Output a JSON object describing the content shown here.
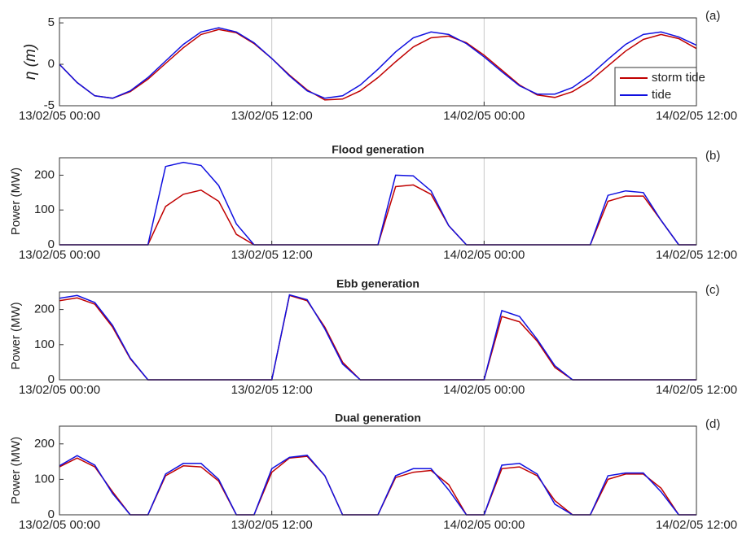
{
  "chart_data": [
    {
      "type": "line",
      "annotation": "(a)",
      "ylabel": "η (m)",
      "legend": "lower right",
      "xgrid": true,
      "x": [
        "13/02/05 00:00",
        "13/02/05 01:00",
        "13/02/05 02:00",
        "13/02/05 03:00",
        "13/02/05 04:00",
        "13/02/05 05:00",
        "13/02/05 06:00",
        "13/02/05 07:00",
        "13/02/05 08:00",
        "13/02/05 09:00",
        "13/02/05 10:00",
        "13/02/05 11:00",
        "13/02/05 12:00",
        "13/02/05 13:00",
        "13/02/05 14:00",
        "13/02/05 15:00",
        "13/02/05 16:00",
        "13/02/05 17:00",
        "13/02/05 18:00",
        "13/02/05 19:00",
        "13/02/05 20:00",
        "13/02/05 21:00",
        "13/02/05 22:00",
        "13/02/05 23:00",
        "14/02/05 00:00",
        "14/02/05 01:00",
        "14/02/05 02:00",
        "14/02/05 03:00",
        "14/02/05 04:00",
        "14/02/05 05:00",
        "14/02/05 06:00",
        "14/02/05 07:00",
        "14/02/05 08:00",
        "14/02/05 09:00",
        "14/02/05 10:00",
        "14/02/05 11:00",
        "14/02/05 12:00"
      ],
      "xlim": [
        "13/02/05 00:00",
        "14/02/05 12:00"
      ],
      "xticks": [
        "13/02/05 00:00",
        "13/02/05 12:00",
        "14/02/05 00:00",
        "14/02/05 12:00"
      ],
      "ylim": [
        -5,
        5.6
      ],
      "yticks": [
        -5,
        0,
        5
      ],
      "series": [
        {
          "name": "storm tide",
          "color": "#c00000",
          "values": [
            0,
            -2.2,
            -3.8,
            -4.1,
            -3.3,
            -1.8,
            0.1,
            2.0,
            3.6,
            4.2,
            3.8,
            2.5,
            0.7,
            -1.3,
            -3.1,
            -4.3,
            -4.2,
            -3.2,
            -1.6,
            0.3,
            2.1,
            3.2,
            3.4,
            2.6,
            1.1,
            -0.7,
            -2.5,
            -3.7,
            -4.0,
            -3.3,
            -2.0,
            -0.2,
            1.6,
            3.0,
            3.6,
            3.1,
            1.9
          ]
        },
        {
          "name": "tide",
          "color": "#1010e0",
          "values": [
            0,
            -2.2,
            -3.8,
            -4.1,
            -3.2,
            -1.6,
            0.4,
            2.4,
            3.9,
            4.4,
            3.9,
            2.6,
            0.7,
            -1.4,
            -3.2,
            -4.1,
            -3.8,
            -2.5,
            -0.6,
            1.5,
            3.2,
            3.9,
            3.6,
            2.5,
            0.9,
            -0.9,
            -2.6,
            -3.6,
            -3.6,
            -2.8,
            -1.3,
            0.6,
            2.4,
            3.6,
            3.9,
            3.3,
            2.3
          ]
        }
      ]
    },
    {
      "type": "line",
      "title": "Flood generation",
      "annotation": "(b)",
      "ylabel": "Power (MW)",
      "xgrid": true,
      "x": [
        "13/02/05 00:00",
        "13/02/05 01:00",
        "13/02/05 02:00",
        "13/02/05 03:00",
        "13/02/05 04:00",
        "13/02/05 05:00",
        "13/02/05 06:00",
        "13/02/05 07:00",
        "13/02/05 08:00",
        "13/02/05 09:00",
        "13/02/05 10:00",
        "13/02/05 11:00",
        "13/02/05 12:00",
        "13/02/05 13:00",
        "13/02/05 14:00",
        "13/02/05 15:00",
        "13/02/05 16:00",
        "13/02/05 17:00",
        "13/02/05 18:00",
        "13/02/05 19:00",
        "13/02/05 20:00",
        "13/02/05 21:00",
        "13/02/05 22:00",
        "13/02/05 23:00",
        "14/02/05 00:00",
        "14/02/05 01:00",
        "14/02/05 02:00",
        "14/02/05 03:00",
        "14/02/05 04:00",
        "14/02/05 05:00",
        "14/02/05 06:00",
        "14/02/05 07:00",
        "14/02/05 08:00",
        "14/02/05 09:00",
        "14/02/05 10:00",
        "14/02/05 11:00",
        "14/02/05 12:00"
      ],
      "xlim": [
        "13/02/05 00:00",
        "14/02/05 12:00"
      ],
      "xticks": [
        "13/02/05 00:00",
        "13/02/05 12:00",
        "14/02/05 00:00",
        "14/02/05 12:00"
      ],
      "ylim": [
        0,
        250
      ],
      "yticks": [
        0,
        100,
        200
      ],
      "series": [
        {
          "color": "#c00000",
          "values": [
            0,
            0,
            0,
            0,
            0,
            0,
            110,
            145,
            157,
            125,
            30,
            0,
            0,
            0,
            0,
            0,
            0,
            0,
            0,
            167,
            172,
            145,
            55,
            0,
            0,
            0,
            0,
            0,
            0,
            0,
            0,
            125,
            140,
            140,
            70,
            0,
            0
          ]
        },
        {
          "color": "#1010e0",
          "values": [
            0,
            0,
            0,
            0,
            0,
            0,
            225,
            237,
            228,
            170,
            60,
            0,
            0,
            0,
            0,
            0,
            0,
            0,
            0,
            200,
            198,
            155,
            55,
            0,
            0,
            0,
            0,
            0,
            0,
            0,
            0,
            142,
            155,
            150,
            70,
            0,
            0
          ]
        }
      ]
    },
    {
      "type": "line",
      "title": "Ebb generation",
      "annotation": "(c)",
      "ylabel": "Power (MW)",
      "xgrid": true,
      "x": [
        "13/02/05 00:00",
        "13/02/05 01:00",
        "13/02/05 02:00",
        "13/02/05 03:00",
        "13/02/05 04:00",
        "13/02/05 05:00",
        "13/02/05 06:00",
        "13/02/05 07:00",
        "13/02/05 08:00",
        "13/02/05 09:00",
        "13/02/05 10:00",
        "13/02/05 11:00",
        "13/02/05 12:00",
        "13/02/05 13:00",
        "13/02/05 14:00",
        "13/02/05 15:00",
        "13/02/05 16:00",
        "13/02/05 17:00",
        "13/02/05 18:00",
        "13/02/05 19:00",
        "13/02/05 20:00",
        "13/02/05 21:00",
        "13/02/05 22:00",
        "13/02/05 23:00",
        "14/02/05 00:00",
        "14/02/05 01:00",
        "14/02/05 02:00",
        "14/02/05 03:00",
        "14/02/05 04:00",
        "14/02/05 05:00",
        "14/02/05 06:00",
        "14/02/05 07:00",
        "14/02/05 08:00",
        "14/02/05 09:00",
        "14/02/05 10:00",
        "14/02/05 11:00",
        "14/02/05 12:00"
      ],
      "xlim": [
        "13/02/05 00:00",
        "14/02/05 12:00"
      ],
      "xticks": [
        "13/02/05 00:00",
        "13/02/05 12:00",
        "14/02/05 00:00",
        "14/02/05 12:00"
      ],
      "ylim": [
        0,
        250
      ],
      "yticks": [
        0,
        100,
        200
      ],
      "series": [
        {
          "color": "#c00000",
          "values": [
            225,
            233,
            215,
            150,
            60,
            0,
            0,
            0,
            0,
            0,
            0,
            0,
            0,
            240,
            225,
            150,
            50,
            0,
            0,
            0,
            0,
            0,
            0,
            0,
            0,
            180,
            165,
            110,
            35,
            0,
            0,
            0,
            0,
            0,
            0,
            0,
            0
          ]
        },
        {
          "color": "#1010e0",
          "values": [
            232,
            240,
            220,
            155,
            62,
            0,
            0,
            0,
            0,
            0,
            0,
            0,
            0,
            242,
            228,
            145,
            45,
            0,
            0,
            0,
            0,
            0,
            0,
            0,
            0,
            197,
            180,
            115,
            40,
            0,
            0,
            0,
            0,
            0,
            0,
            0,
            0
          ]
        }
      ]
    },
    {
      "type": "line",
      "title": "Dual generation",
      "annotation": "(d)",
      "ylabel": "Power (MW)",
      "xgrid": true,
      "x": [
        "13/02/05 00:00",
        "13/02/05 01:00",
        "13/02/05 02:00",
        "13/02/05 03:00",
        "13/02/05 04:00",
        "13/02/05 05:00",
        "13/02/05 06:00",
        "13/02/05 07:00",
        "13/02/05 08:00",
        "13/02/05 09:00",
        "13/02/05 10:00",
        "13/02/05 11:00",
        "13/02/05 12:00",
        "13/02/05 13:00",
        "13/02/05 14:00",
        "13/02/05 15:00",
        "13/02/05 16:00",
        "13/02/05 17:00",
        "13/02/05 18:00",
        "13/02/05 19:00",
        "13/02/05 20:00",
        "13/02/05 21:00",
        "13/02/05 22:00",
        "13/02/05 23:00",
        "14/02/05 00:00",
        "14/02/05 01:00",
        "14/02/05 02:00",
        "14/02/05 03:00",
        "14/02/05 04:00",
        "14/02/05 05:00",
        "14/02/05 06:00",
        "14/02/05 07:00",
        "14/02/05 08:00",
        "14/02/05 09:00",
        "14/02/05 10:00",
        "14/02/05 11:00",
        "14/02/05 12:00"
      ],
      "xlim": [
        "13/02/05 00:00",
        "14/02/05 12:00"
      ],
      "xticks": [
        "13/02/05 00:00",
        "13/02/05 12:00",
        "14/02/05 00:00",
        "14/02/05 12:00"
      ],
      "ylim": [
        0,
        250
      ],
      "yticks": [
        0,
        100,
        200
      ],
      "series": [
        {
          "color": "#c00000",
          "values": [
            135,
            160,
            135,
            65,
            0,
            0,
            110,
            138,
            135,
            95,
            0,
            0,
            120,
            160,
            165,
            110,
            0,
            0,
            0,
            105,
            120,
            125,
            85,
            0,
            0,
            130,
            135,
            110,
            40,
            0,
            0,
            100,
            115,
            115,
            75,
            0,
            0
          ]
        },
        {
          "color": "#1010e0",
          "values": [
            138,
            167,
            140,
            60,
            0,
            0,
            115,
            145,
            145,
            100,
            0,
            0,
            130,
            162,
            168,
            110,
            0,
            0,
            0,
            110,
            130,
            130,
            70,
            0,
            0,
            140,
            145,
            115,
            30,
            0,
            0,
            110,
            118,
            118,
            65,
            0,
            0
          ]
        }
      ]
    }
  ]
}
